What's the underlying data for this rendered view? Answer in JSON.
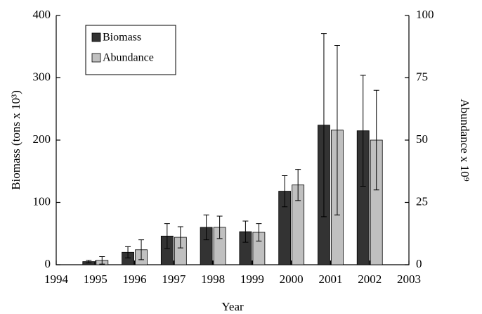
{
  "chart_data": {
    "type": "bar",
    "xlabel": "Year",
    "ylabel": "Biomass (tons x 10³)",
    "y2label": "Abundance x 10⁹",
    "x": [
      1995,
      1996,
      1997,
      1998,
      1999,
      2000,
      2001,
      2002
    ],
    "xlim": [
      1994,
      2003
    ],
    "xticks": [
      1994,
      1995,
      1996,
      1997,
      1998,
      1999,
      2000,
      2001,
      2002,
      2003
    ],
    "ylim": [
      0,
      400
    ],
    "yticks": [
      0,
      100,
      200,
      300,
      400
    ],
    "y2lim": [
      0,
      100
    ],
    "y2ticks": [
      0,
      25,
      50,
      75,
      100
    ],
    "legend": "top-left",
    "grid": false,
    "series": [
      {
        "name": "Biomass",
        "color": "#333333",
        "values": [
          5,
          20,
          46,
          60,
          53,
          118,
          224,
          215
        ],
        "errors": [
          2,
          9,
          20,
          20,
          17,
          25,
          147,
          89
        ]
      },
      {
        "name": "Abundance",
        "color": "#c0c0c0",
        "axis": "y2",
        "values": [
          1.75,
          6,
          11,
          15,
          13,
          32,
          54,
          50
        ],
        "errors": [
          1.5,
          4,
          4.25,
          4.5,
          3.5,
          6.25,
          34,
          20
        ]
      }
    ]
  }
}
